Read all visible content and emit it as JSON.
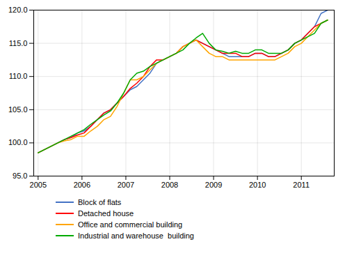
{
  "chart_data": {
    "type": "line",
    "x": [
      2005.0,
      2005.15,
      2005.3,
      2005.45,
      2005.6,
      2005.75,
      2005.9,
      2006.05,
      2006.2,
      2006.35,
      2006.5,
      2006.65,
      2006.8,
      2006.95,
      2007.1,
      2007.25,
      2007.4,
      2007.55,
      2007.7,
      2007.85,
      2008.0,
      2008.15,
      2008.3,
      2008.45,
      2008.6,
      2008.75,
      2008.9,
      2009.05,
      2009.2,
      2009.35,
      2009.5,
      2009.65,
      2009.8,
      2009.95,
      2010.1,
      2010.25,
      2010.4,
      2010.55,
      2010.7,
      2010.85,
      2011.0,
      2011.15,
      2011.3,
      2011.45,
      2011.6
    ],
    "series": [
      {
        "name": "Block of flats",
        "color": "#4472C4",
        "values": [
          98.5,
          99.0,
          99.5,
          100.0,
          100.5,
          100.8,
          101.5,
          101.8,
          102.5,
          103.5,
          104.5,
          105.0,
          106.0,
          107.0,
          108.0,
          108.5,
          109.5,
          110.5,
          112.0,
          112.5,
          113.0,
          113.5,
          114.5,
          115.0,
          115.5,
          115.0,
          114.5,
          114.0,
          113.5,
          113.0,
          113.0,
          113.0,
          113.0,
          113.5,
          113.5,
          113.0,
          113.0,
          113.5,
          114.0,
          115.0,
          115.5,
          116.5,
          117.5,
          119.5,
          120.0
        ]
      },
      {
        "name": "Detached house",
        "color": "#FF0000",
        "values": [
          98.5,
          99.0,
          99.5,
          100.0,
          100.5,
          100.8,
          101.2,
          101.5,
          102.5,
          103.5,
          104.5,
          105.0,
          106.0,
          107.0,
          108.2,
          109.0,
          110.0,
          111.5,
          112.5,
          112.5,
          113.0,
          113.5,
          114.5,
          115.0,
          115.5,
          115.0,
          114.5,
          114.0,
          113.5,
          113.5,
          113.5,
          113.0,
          113.0,
          113.5,
          113.5,
          113.0,
          113.0,
          113.5,
          114.0,
          115.0,
          115.5,
          116.5,
          117.5,
          118.0,
          118.5
        ]
      },
      {
        "name": "Office and commercial building",
        "color": "#FFA500",
        "values": [
          98.5,
          99.0,
          99.5,
          100.0,
          100.3,
          100.5,
          101.0,
          101.0,
          101.8,
          102.5,
          103.5,
          104.0,
          105.5,
          107.5,
          109.5,
          109.5,
          110.0,
          111.0,
          112.0,
          112.5,
          113.0,
          113.5,
          114.5,
          115.0,
          115.5,
          114.5,
          113.5,
          113.0,
          113.0,
          112.5,
          112.5,
          112.5,
          112.5,
          112.5,
          112.5,
          112.5,
          112.5,
          113.0,
          113.5,
          114.5,
          115.0,
          116.0,
          117.0,
          118.0,
          118.5
        ]
      },
      {
        "name": "Industrial and warehouse  building",
        "color": "#00AA00",
        "values": [
          98.5,
          99.0,
          99.5,
          100.0,
          100.5,
          101.0,
          101.5,
          102.0,
          102.8,
          103.5,
          104.2,
          104.8,
          106.0,
          107.5,
          109.5,
          110.5,
          110.8,
          111.5,
          112.0,
          112.5,
          113.0,
          113.5,
          114.0,
          115.0,
          115.8,
          116.5,
          115.0,
          114.0,
          113.8,
          113.5,
          113.8,
          113.5,
          113.5,
          114.0,
          114.0,
          113.5,
          113.5,
          113.5,
          114.0,
          115.0,
          115.5,
          116.0,
          116.5,
          118.0,
          118.5
        ]
      }
    ],
    "xlim": [
      2004.9,
      2011.75
    ],
    "xticks": [
      2005,
      2006,
      2007,
      2008,
      2009,
      2010,
      2011
    ],
    "ylim": [
      95.0,
      120.0
    ],
    "yticks": [
      {
        "value": 95,
        "label": "95.0"
      },
      {
        "value": 100,
        "label": "100.0"
      },
      {
        "value": 105,
        "label": "105.0"
      },
      {
        "value": 110,
        "label": "110.0"
      },
      {
        "value": 115,
        "label": "115.0"
      },
      {
        "value": 120,
        "label": "120.0"
      }
    ],
    "grid": true,
    "legend": "bottom"
  }
}
